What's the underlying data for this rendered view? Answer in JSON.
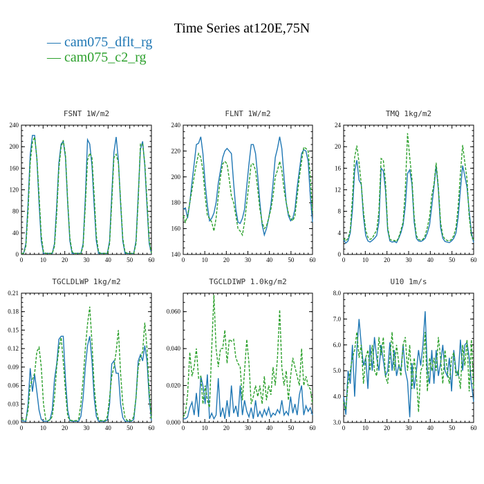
{
  "page": {
    "title": "Time Series at120E,75N"
  },
  "legend": [
    {
      "label": "— cam075_dflt_rg",
      "color": "#1f77b4"
    },
    {
      "label": "— cam075_c2_rg",
      "color": "#2ca02c"
    }
  ],
  "chart_data": [
    {
      "type": "line",
      "title": "FSNT   1W/m2",
      "xlim": [
        0,
        60
      ],
      "ylim": [
        0,
        240
      ],
      "xticks": [
        "0",
        "10",
        "20",
        "30",
        "40",
        "50",
        "60"
      ],
      "yticks": [
        "0",
        "40",
        "80",
        "120",
        "160",
        "200",
        "240"
      ],
      "series": [
        {
          "name": "cam075_dflt_rg",
          "style": "solid",
          "values": [
            2,
            2,
            20,
            95,
            185,
            221,
            221,
            178,
            95,
            25,
            2,
            2,
            2,
            2,
            2,
            20,
            90,
            170,
            205,
            210,
            180,
            95,
            25,
            2,
            2,
            2,
            2,
            2,
            20,
            105,
            213,
            205,
            165,
            90,
            25,
            2,
            2,
            2,
            2,
            2,
            25,
            110,
            190,
            218,
            175,
            95,
            25,
            2,
            2,
            2,
            2,
            2,
            25,
            110,
            195,
            210,
            165,
            90,
            20,
            2
          ]
        },
        {
          "name": "cam075_c2_rg",
          "style": "dashed",
          "values": [
            2,
            2,
            15,
            80,
            170,
            208,
            218,
            180,
            110,
            35,
            5,
            2,
            2,
            2,
            2,
            15,
            75,
            160,
            200,
            212,
            185,
            100,
            30,
            5,
            2,
            2,
            2,
            2,
            15,
            90,
            175,
            188,
            180,
            110,
            35,
            5,
            2,
            2,
            2,
            2,
            20,
            95,
            180,
            186,
            170,
            100,
            30,
            5,
            2,
            2,
            2,
            2,
            20,
            100,
            205,
            205,
            170,
            100,
            25,
            3
          ]
        }
      ]
    },
    {
      "type": "line",
      "title": "FLNT   1W/m2",
      "xlim": [
        0,
        60
      ],
      "ylim": [
        140,
        240
      ],
      "xticks": [
        "0",
        "10",
        "20",
        "30",
        "40",
        "50",
        "60"
      ],
      "yticks": [
        "140",
        "160",
        "180",
        "200",
        "220",
        "240"
      ],
      "series": [
        {
          "name": "cam075_dflt_rg",
          "style": "solid",
          "values": [
            175,
            176,
            168,
            180,
            196,
            210,
            225,
            226,
            231,
            218,
            195,
            178,
            166,
            168,
            172,
            180,
            195,
            205,
            215,
            220,
            222,
            220,
            218,
            195,
            175,
            165,
            164,
            168,
            175,
            193,
            210,
            225,
            225,
            218,
            200,
            180,
            163,
            155,
            160,
            168,
            178,
            195,
            215,
            222,
            231,
            222,
            200,
            180,
            170,
            166,
            168,
            175,
            192,
            205,
            218,
            221,
            220,
            212,
            185,
            165
          ]
        },
        {
          "name": "cam075_c2_rg",
          "style": "dashed",
          "values": [
            170,
            165,
            170,
            180,
            190,
            200,
            210,
            218,
            215,
            205,
            185,
            170,
            168,
            165,
            158,
            168,
            185,
            200,
            210,
            212,
            210,
            198,
            185,
            180,
            170,
            160,
            158,
            155,
            165,
            180,
            195,
            210,
            210,
            205,
            190,
            175,
            165,
            160,
            162,
            168,
            175,
            185,
            200,
            205,
            212,
            205,
            190,
            180,
            172,
            168,
            166,
            170,
            185,
            200,
            212,
            223,
            222,
            220,
            200,
            172
          ]
        }
      ]
    },
    {
      "type": "line",
      "title": "TMQ   1kg/m2",
      "xlim": [
        0,
        60
      ],
      "ylim": [
        0,
        24
      ],
      "xticks": [
        "0",
        "10",
        "20",
        "30",
        "40",
        "50",
        "60"
      ],
      "yticks": [
        "0",
        "4",
        "8",
        "12",
        "16",
        "20",
        "24"
      ],
      "series": [
        {
          "name": "cam075_dflt_rg",
          "style": "solid",
          "values": [
            2.7,
            2.1,
            2.5,
            4.0,
            8.2,
            15.5,
            17.5,
            13.8,
            13.0,
            7.0,
            3.5,
            2.5,
            2.3,
            2.6,
            3.0,
            3.5,
            6.0,
            16.0,
            15.5,
            12.0,
            4.5,
            2.5,
            2.3,
            2.4,
            2.2,
            3.0,
            4.0,
            5.5,
            9.0,
            15.0,
            15.7,
            13.0,
            6.0,
            3.0,
            2.5,
            2.4,
            2.6,
            3.0,
            4.0,
            5.5,
            9.0,
            12.5,
            16.5,
            12.0,
            5.0,
            3.0,
            2.4,
            2.3,
            2.2,
            2.5,
            3.0,
            4.0,
            7.0,
            12.0,
            16.5,
            14.5,
            12.5,
            8.0,
            4.0,
            2.2
          ]
        },
        {
          "name": "cam075_c2_rg",
          "style": "dashed",
          "values": [
            3.0,
            2.5,
            3.0,
            4.5,
            10.5,
            18.0,
            20.2,
            17.0,
            13.0,
            8.0,
            4.5,
            3.2,
            2.8,
            3.0,
            3.8,
            4.5,
            8.0,
            17.8,
            17.5,
            13.5,
            5.0,
            2.8,
            2.6,
            2.6,
            2.4,
            3.2,
            4.5,
            6.0,
            12.0,
            22.5,
            18.0,
            14.0,
            7.0,
            3.5,
            2.8,
            2.6,
            2.8,
            3.5,
            5.0,
            7.0,
            11.0,
            13.0,
            17.0,
            12.5,
            6.0,
            3.5,
            2.8,
            2.6,
            2.5,
            2.8,
            3.5,
            5.0,
            9.0,
            15.0,
            20.3,
            17.0,
            14.0,
            7.0,
            3.5,
            2.7
          ]
        }
      ]
    },
    {
      "type": "line",
      "title": "TGCLDLWP   1kg/m2",
      "xlim": [
        0,
        60
      ],
      "ylim": [
        0,
        0.21
      ],
      "xticks": [
        "0",
        "10",
        "20",
        "30",
        "40",
        "50",
        "60"
      ],
      "yticks": [
        "0.00",
        "0.03",
        "0.06",
        "0.09",
        "0.12",
        "0.15",
        "0.18",
        "0.21"
      ],
      "series": [
        {
          "name": "cam075_dflt_rg",
          "style": "solid",
          "values": [
            0.003,
            0.002,
            0.002,
            0.03,
            0.088,
            0.05,
            0.078,
            0.05,
            0.02,
            0.005,
            0.002,
            0.002,
            0.002,
            0.005,
            0.02,
            0.07,
            0.095,
            0.135,
            0.14,
            0.14,
            0.07,
            0.02,
            0.003,
            0.002,
            0.002,
            0.002,
            0.002,
            0.01,
            0.04,
            0.09,
            0.125,
            0.14,
            0.1,
            0.04,
            0.01,
            0.002,
            0.002,
            0.002,
            0.002,
            0.004,
            0.03,
            0.095,
            0.1,
            0.08,
            0.08,
            0.03,
            0.008,
            0.002,
            0.002,
            0.002,
            0.002,
            0.005,
            0.04,
            0.1,
            0.11,
            0.1,
            0.125,
            0.1,
            0.04,
            0.003
          ]
        },
        {
          "name": "cam075_c2_rg",
          "style": "dashed",
          "values": [
            0.006,
            0.004,
            0.004,
            0.02,
            0.06,
            0.07,
            0.08,
            0.115,
            0.122,
            0.09,
            0.03,
            0.005,
            0.003,
            0.004,
            0.01,
            0.04,
            0.09,
            0.12,
            0.138,
            0.1,
            0.05,
            0.01,
            0.004,
            0.003,
            0.003,
            0.003,
            0.006,
            0.03,
            0.07,
            0.12,
            0.16,
            0.188,
            0.13,
            0.06,
            0.02,
            0.005,
            0.003,
            0.003,
            0.003,
            0.01,
            0.04,
            0.075,
            0.09,
            0.115,
            0.15,
            0.08,
            0.03,
            0.008,
            0.003,
            0.003,
            0.003,
            0.01,
            0.04,
            0.09,
            0.105,
            0.115,
            0.162,
            0.12,
            0.05,
            0.006
          ]
        }
      ]
    },
    {
      "type": "line",
      "title": "TGCLDIWP   1.0kg/m2",
      "xlim": [
        0,
        60
      ],
      "ylim": [
        0,
        0.07
      ],
      "xticks": [
        "0",
        "10",
        "20",
        "30",
        "40",
        "50",
        "60"
      ],
      "yticks": [
        "0.000",
        "0.020",
        "0.040",
        "0.060"
      ],
      "series": [
        {
          "name": "cam075_dflt_rg",
          "style": "solid",
          "values": [
            0.002,
            0.002,
            0.003,
            0.008,
            0.011,
            0.004,
            0.016,
            0.003,
            0.025,
            0.02,
            0.01,
            0.026,
            0.002,
            0.005,
            0.002,
            0.004,
            0.024,
            0.003,
            0.008,
            0.002,
            0.012,
            0.003,
            0.02,
            0.005,
            0.009,
            0.003,
            0.02,
            0.004,
            0.012,
            0.006,
            0.003,
            0.008,
            0.002,
            0.012,
            0.003,
            0.006,
            0.003,
            0.007,
            0.004,
            0.008,
            0.003,
            0.005,
            0.004,
            0.007,
            0.005,
            0.012,
            0.004,
            0.006,
            0.004,
            0.014,
            0.005,
            0.01,
            0.004,
            0.015,
            0.02,
            0.004,
            0.009,
            0.006,
            0.008,
            0.004
          ]
        },
        {
          "name": "cam075_c2_rg",
          "style": "dashed",
          "values": [
            0.003,
            0.005,
            0.015,
            0.038,
            0.025,
            0.03,
            0.04,
            0.024,
            0.025,
            0.01,
            0.02,
            0.012,
            0.008,
            0.04,
            0.069,
            0.04,
            0.03,
            0.04,
            0.04,
            0.05,
            0.032,
            0.045,
            0.044,
            0.045,
            0.035,
            0.032,
            0.03,
            0.012,
            0.028,
            0.045,
            0.032,
            0.01,
            0.014,
            0.02,
            0.014,
            0.02,
            0.01,
            0.025,
            0.012,
            0.02,
            0.015,
            0.03,
            0.02,
            0.035,
            0.061,
            0.03,
            0.02,
            0.028,
            0.012,
            0.025,
            0.035,
            0.03,
            0.025,
            0.02,
            0.04,
            0.02,
            0.025,
            0.02,
            0.018,
            0.01
          ]
        }
      ]
    },
    {
      "type": "line",
      "title": "U10   1m/s",
      "xlim": [
        0,
        60
      ],
      "ylim": [
        3.0,
        8.0
      ],
      "xticks": [
        "0",
        "10",
        "20",
        "30",
        "40",
        "50",
        "60"
      ],
      "yticks": [
        "3.0",
        "4.0",
        "5.0",
        "6.0",
        "7.0",
        "8.0"
      ],
      "series": [
        {
          "name": "cam075_dflt_rg",
          "style": "solid",
          "values": [
            4.0,
            3.3,
            5.0,
            4.5,
            6.0,
            4.0,
            5.8,
            7.0,
            6.0,
            5.2,
            5.5,
            4.3,
            6.0,
            5.0,
            6.3,
            5.5,
            5.0,
            6.0,
            5.4,
            4.8,
            5.0,
            6.1,
            5.0,
            5.8,
            4.8,
            5.2,
            5.0,
            6.0,
            5.0,
            4.6,
            3.2,
            5.3,
            4.3,
            5.0,
            5.8,
            5.2,
            6.0,
            7.3,
            5.0,
            4.5,
            5.8,
            4.5,
            5.8,
            4.8,
            5.3,
            6.0,
            5.0,
            4.8,
            5.5,
            4.2,
            5.8,
            5.0,
            4.8,
            6.2,
            5.0,
            6.0,
            6.1,
            5.5,
            4.5,
            3.8
          ]
        },
        {
          "name": "cam075_c2_rg",
          "style": "dashed",
          "values": [
            3.8,
            3.5,
            4.5,
            5.0,
            5.5,
            5.8,
            6.5,
            5.5,
            6.0,
            4.5,
            5.5,
            5.8,
            5.0,
            6.0,
            5.0,
            4.8,
            6.3,
            5.6,
            6.3,
            4.8,
            4.5,
            5.5,
            6.5,
            5.0,
            6.0,
            5.3,
            4.8,
            6.0,
            6.3,
            5.0,
            6.0,
            4.3,
            5.5,
            4.8,
            3.4,
            5.0,
            5.2,
            6.5,
            4.2,
            5.5,
            5.0,
            5.5,
            5.0,
            6.3,
            5.5,
            4.5,
            5.8,
            5.0,
            4.5,
            5.5,
            5.7,
            4.8,
            5.0,
            4.3,
            6.0,
            5.2,
            6.2,
            4.2,
            6.2,
            4.3
          ]
        }
      ]
    }
  ]
}
